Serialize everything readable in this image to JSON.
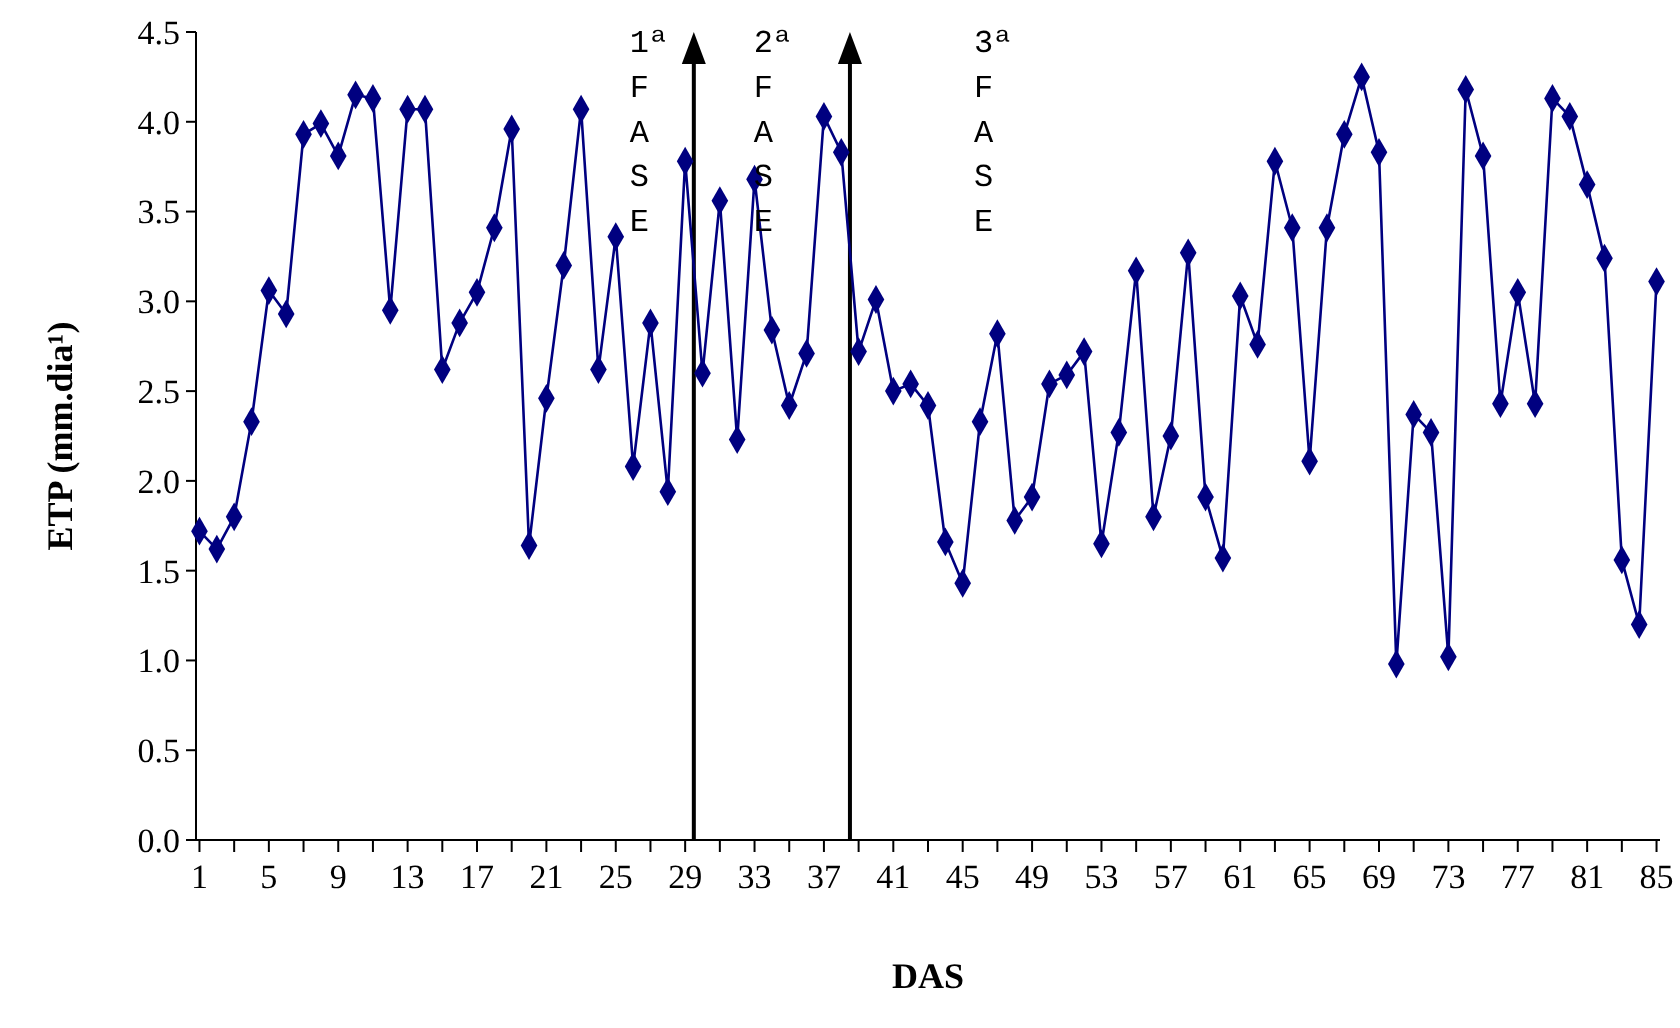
{
  "chart_data": {
    "type": "line",
    "xlabel": "DAS",
    "ylabel": "ETP (mm.dia¹)",
    "x": [
      1,
      2,
      3,
      4,
      5,
      6,
      7,
      8,
      9,
      10,
      11,
      12,
      13,
      14,
      15,
      16,
      17,
      18,
      19,
      20,
      21,
      22,
      23,
      24,
      25,
      26,
      27,
      28,
      29,
      30,
      31,
      32,
      33,
      34,
      35,
      36,
      37,
      38,
      39,
      40,
      41,
      42,
      43,
      44,
      45,
      46,
      47,
      48,
      49,
      50,
      51,
      52,
      53,
      54,
      55,
      56,
      57,
      58,
      59,
      60,
      61,
      62,
      63,
      64,
      65,
      66,
      67,
      68,
      69,
      70,
      71,
      72,
      73,
      74,
      75,
      76,
      77,
      78,
      79,
      80,
      81,
      82,
      83,
      84,
      85
    ],
    "series": [
      {
        "color": "#000080",
        "values": [
          1.72,
          1.62,
          1.8,
          2.33,
          3.06,
          2.93,
          3.93,
          3.99,
          3.81,
          4.15,
          4.13,
          2.95,
          4.07,
          4.07,
          2.62,
          2.88,
          3.05,
          3.41,
          3.96,
          1.64,
          2.46,
          3.2,
          4.07,
          2.62,
          3.36,
          2.08,
          2.88,
          1.94,
          3.78,
          2.6,
          3.56,
          2.23,
          3.68,
          2.84,
          2.42,
          2.71,
          4.03,
          3.83,
          2.72,
          3.01,
          2.5,
          2.54,
          2.42,
          1.66,
          1.43,
          2.33,
          2.82,
          1.78,
          1.91,
          2.54,
          2.59,
          2.72,
          1.65,
          2.27,
          3.17,
          1.8,
          2.25,
          3.27,
          1.91,
          1.57,
          3.03,
          2.76,
          3.78,
          3.41,
          2.11,
          3.41,
          3.93,
          4.25,
          3.83,
          0.98,
          2.37,
          2.27,
          1.02,
          4.18,
          3.81,
          2.43,
          3.05,
          2.43,
          4.13,
          4.03,
          3.65,
          3.24,
          1.56,
          1.2,
          3.11
        ]
      }
    ],
    "marker": "diamond",
    "line_style": "solid",
    "xlim": [
      0.8,
      85.2
    ],
    "xticks": [
      1,
      {
        "value": 3,
        "label": null
      },
      5,
      {
        "value": 7,
        "label": null
      },
      9,
      {
        "value": 11,
        "label": null
      },
      13,
      {
        "value": 15,
        "label": null
      },
      17,
      {
        "value": 19,
        "label": null
      },
      21,
      {
        "value": 23,
        "label": null
      },
      25,
      {
        "value": 27,
        "label": null
      },
      29,
      {
        "value": 31,
        "label": null
      },
      33,
      {
        "value": 35,
        "label": null
      },
      37,
      {
        "value": 39,
        "label": null
      },
      41,
      {
        "value": 43,
        "label": null
      },
      45,
      {
        "value": 47,
        "label": null
      },
      49,
      {
        "value": 51,
        "label": null
      },
      53,
      {
        "value": 55,
        "label": null
      },
      57,
      {
        "value": 59,
        "label": null
      },
      61,
      {
        "value": 63,
        "label": null
      },
      65,
      {
        "value": 67,
        "label": null
      },
      69,
      {
        "value": 71,
        "label": null
      },
      73,
      {
        "value": 75,
        "label": null
      },
      77,
      {
        "value": 79,
        "label": null
      },
      81,
      {
        "value": 83,
        "label": null
      },
      85
    ],
    "ylim": [
      0,
      4.5
    ],
    "yticks": [
      {
        "value": 0,
        "label": "0.0"
      },
      {
        "value": 0.5,
        "label": "0.5"
      },
      {
        "value": 1,
        "label": "1.0"
      },
      {
        "value": 1.5,
        "label": "1.5"
      },
      {
        "value": 2,
        "label": "2.0"
      },
      {
        "value": 2.5,
        "label": "2.5"
      },
      {
        "value": 3,
        "label": "3.0"
      },
      {
        "value": 3.5,
        "label": "3.5"
      },
      {
        "value": 4,
        "label": "4.0"
      },
      {
        "value": 4.5,
        "label": "4.5"
      }
    ],
    "grid": false,
    "ref_lines": [
      {
        "axis": "x",
        "value": 29.5,
        "color": "#000000"
      },
      {
        "axis": "x",
        "value": 38.5,
        "color": "#000000"
      }
    ],
    "annotations": [
      "1ª FASE",
      "2ª FASE",
      "3ª FASE"
    ]
  }
}
